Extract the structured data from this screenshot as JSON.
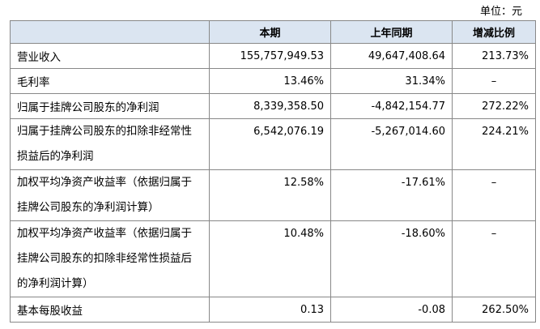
{
  "unit": "单位：元",
  "table": {
    "headers": [
      "本期",
      "上年同期",
      "增减比例"
    ],
    "rows": [
      [
        "营业收入",
        "155,757,949.53",
        "49,647,408.64",
        "213.73%"
      ],
      [
        "毛利率",
        "13.46%",
        "31.34%",
        "–"
      ],
      [
        "归属于挂牌公司股东的净利润",
        "8,339,358.50",
        "-4,842,154.77",
        "272.22%"
      ],
      [
        "归属于挂牌公司股东的扣除非经常性损益后的净利润",
        "6,542,076.19",
        "-5,267,014.60",
        "224.21%"
      ],
      [
        "加权平均净资产收益率（依据归属于挂牌公司股东的净利润计算）",
        "12.58%",
        "-17.61%",
        "–"
      ],
      [
        "加权平均净资产收益率（依据归属于挂牌公司股东的扣除非经常性损益后的净利润计算）",
        "10.48%",
        "-18.60%",
        "–"
      ],
      [
        "基本每股收益",
        "0.13",
        "-0.08",
        "262.50%"
      ]
    ]
  }
}
